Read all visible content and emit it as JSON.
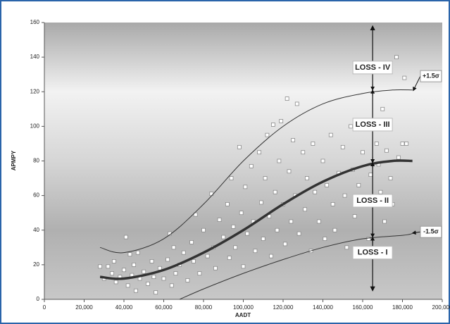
{
  "chart_data": {
    "type": "scatter",
    "xlabel": "AADT",
    "ylabel": "APMPY",
    "xlim": [
      0,
      200000
    ],
    "xticks": [
      {
        "value": 0,
        "label": "0"
      },
      {
        "value": 20000,
        "label": "20,000"
      },
      {
        "value": 40000,
        "label": "40,000"
      },
      {
        "value": 60000,
        "label": "60,000"
      },
      {
        "value": 80000,
        "label": "80,000"
      },
      {
        "value": 100000,
        "label": "100,000"
      },
      {
        "value": 120000,
        "label": "120,000"
      },
      {
        "value": 140000,
        "label": "140,000"
      },
      {
        "value": 160000,
        "label": "160,000"
      },
      {
        "value": 180000,
        "label": "180,000"
      },
      {
        "value": 200000,
        "label": "200,000"
      }
    ],
    "ylim": [
      0,
      160
    ],
    "yticks": [
      0,
      20,
      40,
      60,
      80,
      100,
      120,
      140,
      160
    ],
    "series": [
      {
        "kind": "points",
        "color": "#8a8a8a",
        "x": [
          28000,
          30000,
          32000,
          34000,
          35000,
          36000,
          38000,
          40000,
          41000,
          42000,
          43000,
          44000,
          45000,
          46000,
          47000,
          48000,
          50000,
          52000,
          54000,
          55000,
          56000,
          58000,
          60000,
          62000,
          63000,
          64000,
          65000,
          66000,
          68000,
          70000,
          72000,
          74000,
          75000,
          76000,
          78000,
          80000,
          82000,
          84000,
          85000,
          86000,
          88000,
          90000,
          92000,
          93000,
          94000,
          95000,
          96000,
          98000,
          99000,
          100000,
          101000,
          102000,
          104000,
          105000,
          106000,
          108000,
          109000,
          110000,
          111000,
          112000,
          113000,
          114000,
          115000,
          116000,
          117000,
          118000,
          119000,
          120000,
          121000,
          122000,
          123000,
          124000,
          125000,
          126000,
          127000,
          128000,
          130000,
          131000,
          132000,
          134000,
          135000,
          136000,
          138000,
          140000,
          141000,
          142000,
          144000,
          145000,
          146000,
          148000,
          150000,
          151000,
          152000,
          154000,
          155000,
          156000,
          158000,
          160000,
          161000,
          162000,
          163000,
          164000,
          166000,
          167000,
          168000,
          169000,
          170000,
          171000,
          172000,
          174000,
          175000,
          177000,
          178000,
          180000,
          181000,
          182000
        ],
        "values": [
          19,
          12,
          19,
          15,
          22,
          10,
          13,
          17,
          36,
          8,
          26,
          14,
          20,
          5,
          27,
          12,
          16,
          9,
          22,
          13,
          4,
          18,
          12,
          23,
          38,
          8,
          30,
          15,
          20,
          27,
          11,
          33,
          22,
          49,
          15,
          40,
          25,
          61,
          30,
          18,
          46,
          36,
          55,
          24,
          70,
          42,
          30,
          88,
          50,
          19,
          65,
          38,
          77,
          45,
          28,
          85,
          56,
          35,
          70,
          95,
          48,
          25,
          101,
          62,
          40,
          80,
          103,
          55,
          32,
          116,
          74,
          45,
          92,
          60,
          113,
          38,
          85,
          52,
          70,
          28,
          90,
          62,
          45,
          80,
          35,
          66,
          95,
          55,
          40,
          73,
          88,
          60,
          30,
          100,
          75,
          48,
          66,
          85,
          55,
          100,
          35,
          72,
          135,
          90,
          78,
          62,
          110,
          45,
          86,
          70,
          55,
          140,
          82,
          90,
          128,
          90
        ]
      },
      {
        "kind": "line",
        "color": "#333333",
        "width": 3.5,
        "x": [
          28000,
          40000,
          60000,
          80000,
          100000,
          120000,
          140000,
          160000,
          175000,
          185000
        ],
        "values": [
          13,
          12,
          17,
          27,
          40,
          55,
          68,
          77,
          80,
          80
        ]
      },
      {
        "kind": "line",
        "color": "#333333",
        "width": 1,
        "x": [
          28000,
          40000,
          60000,
          80000,
          100000,
          120000,
          140000,
          160000,
          175000,
          185000
        ],
        "values": [
          30,
          27,
          35,
          55,
          80,
          100,
          113,
          119,
          121,
          121
        ]
      },
      {
        "kind": "line",
        "color": "#333333",
        "width": 1,
        "x": [
          68000,
          80000,
          100000,
          120000,
          140000,
          160000,
          180000,
          185000
        ],
        "values": [
          0,
          6,
          15,
          23,
          30,
          35,
          37,
          38
        ]
      }
    ],
    "annotations": [
      "LOSS - IV",
      "LOSS - III",
      "LOSS - II",
      "LOSS - I",
      "+1.5σ",
      "-1.5σ"
    ]
  }
}
